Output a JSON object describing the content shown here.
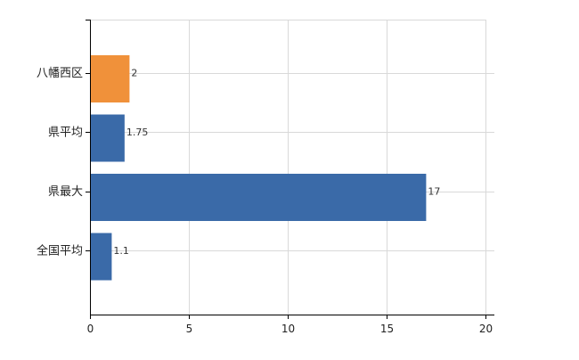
{
  "chart_data": {
    "type": "bar",
    "orientation": "horizontal",
    "categories": [
      "八幡西区",
      "県平均",
      "県最大",
      "全国平均"
    ],
    "values": [
      2,
      1.75,
      17,
      1.1
    ],
    "value_labels": [
      "2",
      "1.75",
      "17",
      "1.1"
    ],
    "bar_colors": [
      "#f0913a",
      "#3a6aa8",
      "#3a6aa8",
      "#3a6aa8"
    ],
    "xlim": [
      0,
      20
    ],
    "xticks": [
      0,
      5,
      10,
      15,
      20
    ],
    "xtick_labels": [
      "0",
      "5",
      "10",
      "15",
      "20"
    ],
    "grid": true,
    "title": "",
    "xlabel": "",
    "ylabel": ""
  }
}
